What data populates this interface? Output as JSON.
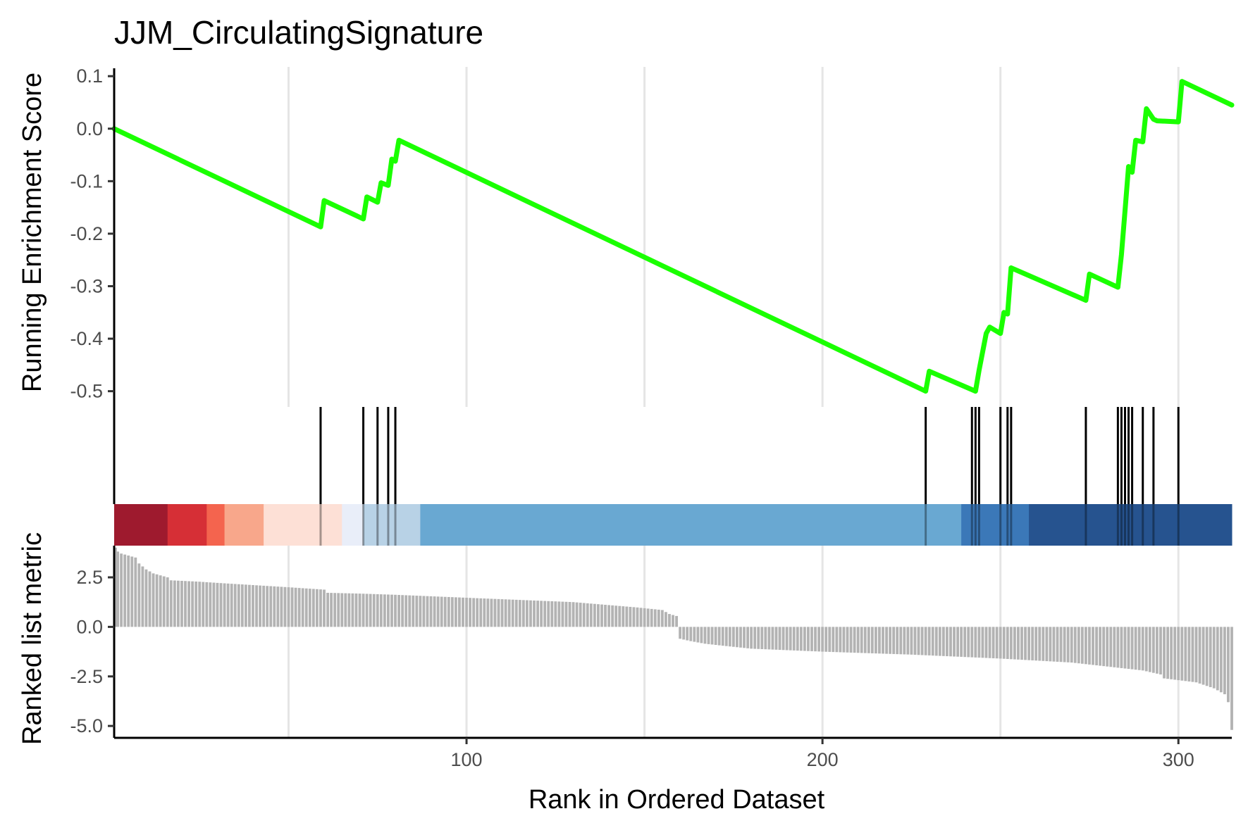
{
  "chart_data": {
    "type": "line",
    "title": "JJM_CirculatingSignature",
    "xlabel": "Rank in Ordered Dataset",
    "xlim": [
      1,
      315
    ],
    "x_ticks": [
      100,
      200,
      300
    ],
    "x_tick_labels": [
      "100",
      "200",
      "300"
    ],
    "grid_x": [
      50,
      100,
      150,
      200,
      250,
      300
    ],
    "colors": {
      "es_line": "#1aff00",
      "hit": "#000000",
      "metric_bar": "#b3b3b3",
      "grid": "#e5e5e5"
    },
    "es_panel": {
      "ylabel": "Running Enrichment Score",
      "ylim": [
        -0.53,
        0.115
      ],
      "y_ticks": [
        0.1,
        0.0,
        -0.1,
        -0.2,
        -0.3,
        -0.4,
        -0.5
      ],
      "y_tick_labels": [
        "0.1",
        "0.0",
        "-0.1",
        "-0.2",
        "-0.3",
        "-0.4",
        "-0.5"
      ],
      "series": [
        {
          "x": [
            1,
            59,
            60,
            71,
            72,
            75,
            76,
            78,
            79,
            80,
            81,
            229,
            230,
            243,
            244,
            246,
            247,
            250,
            251,
            252,
            253,
            274,
            275,
            283,
            284,
            285,
            286,
            287,
            288,
            290,
            291,
            293,
            294,
            300,
            301,
            315
          ],
          "y": [
            0.0,
            -0.187,
            -0.137,
            -0.172,
            -0.13,
            -0.14,
            -0.103,
            -0.108,
            -0.058,
            -0.062,
            -0.022,
            -0.5,
            -0.462,
            -0.5,
            -0.46,
            -0.39,
            -0.378,
            -0.39,
            -0.35,
            -0.353,
            -0.265,
            -0.327,
            -0.277,
            -0.302,
            -0.24,
            -0.156,
            -0.072,
            -0.083,
            -0.022,
            -0.025,
            0.038,
            0.018,
            0.015,
            0.013,
            0.09,
            0.045
          ]
        }
      ]
    },
    "hits": [
      59,
      71,
      75,
      78,
      80,
      229,
      242,
      243,
      244,
      250,
      252,
      253,
      274,
      283,
      284,
      285,
      286,
      287,
      290,
      293,
      300
    ],
    "heatmap_band": {
      "segments": [
        {
          "from": 1,
          "to": 16,
          "color": "#9e1a2e"
        },
        {
          "from": 16,
          "to": 27,
          "color": "#d62f36"
        },
        {
          "from": 27,
          "to": 32,
          "color": "#f4644e"
        },
        {
          "from": 32,
          "to": 43,
          "color": "#f8a78b"
        },
        {
          "from": 43,
          "to": 65,
          "color": "#fde0d6"
        },
        {
          "from": 65,
          "to": 71,
          "color": "#e9eef9"
        },
        {
          "from": 71,
          "to": 87,
          "color": "#b8d2e6"
        },
        {
          "from": 87,
          "to": 239,
          "color": "#69a8d2"
        },
        {
          "from": 239,
          "to": 258,
          "color": "#3b78b8"
        },
        {
          "from": 258,
          "to": 316,
          "color": "#26538f"
        }
      ]
    },
    "metric_panel": {
      "ylabel": "Ranked list metric",
      "ylim": [
        -5.6,
        4.1
      ],
      "y_ticks": [
        2.5,
        0.0,
        -2.5,
        -5.0
      ],
      "y_tick_labels": [
        "2.5",
        "0.0",
        "-2.5",
        "-5.0"
      ],
      "profile": [
        [
          1,
          4.0
        ],
        [
          2,
          3.8
        ],
        [
          3,
          3.7
        ],
        [
          5,
          3.6
        ],
        [
          7,
          3.5
        ],
        [
          8,
          3.2
        ],
        [
          10,
          2.9
        ],
        [
          12,
          2.7
        ],
        [
          14,
          2.6
        ],
        [
          16,
          2.5
        ],
        [
          17,
          2.35
        ],
        [
          25,
          2.28
        ],
        [
          30,
          2.22
        ],
        [
          50,
          2.0
        ],
        [
          60,
          1.88
        ],
        [
          61,
          1.72
        ],
        [
          70,
          1.68
        ],
        [
          80,
          1.62
        ],
        [
          100,
          1.47
        ],
        [
          130,
          1.25
        ],
        [
          140,
          1.1
        ],
        [
          148,
          0.98
        ],
        [
          155,
          0.85
        ],
        [
          157,
          0.65
        ],
        [
          159,
          0.55
        ],
        [
          160,
          -0.6
        ],
        [
          163,
          -0.72
        ],
        [
          167,
          -0.85
        ],
        [
          172,
          -0.95
        ],
        [
          180,
          -1.1
        ],
        [
          200,
          -1.25
        ],
        [
          225,
          -1.4
        ],
        [
          250,
          -1.6
        ],
        [
          270,
          -1.8
        ],
        [
          280,
          -2.0
        ],
        [
          290,
          -2.2
        ],
        [
          295,
          -2.4
        ],
        [
          296,
          -2.6
        ],
        [
          305,
          -2.8
        ],
        [
          310,
          -3.1
        ],
        [
          313,
          -3.4
        ],
        [
          314,
          -3.8
        ],
        [
          315,
          -5.2
        ]
      ]
    }
  }
}
